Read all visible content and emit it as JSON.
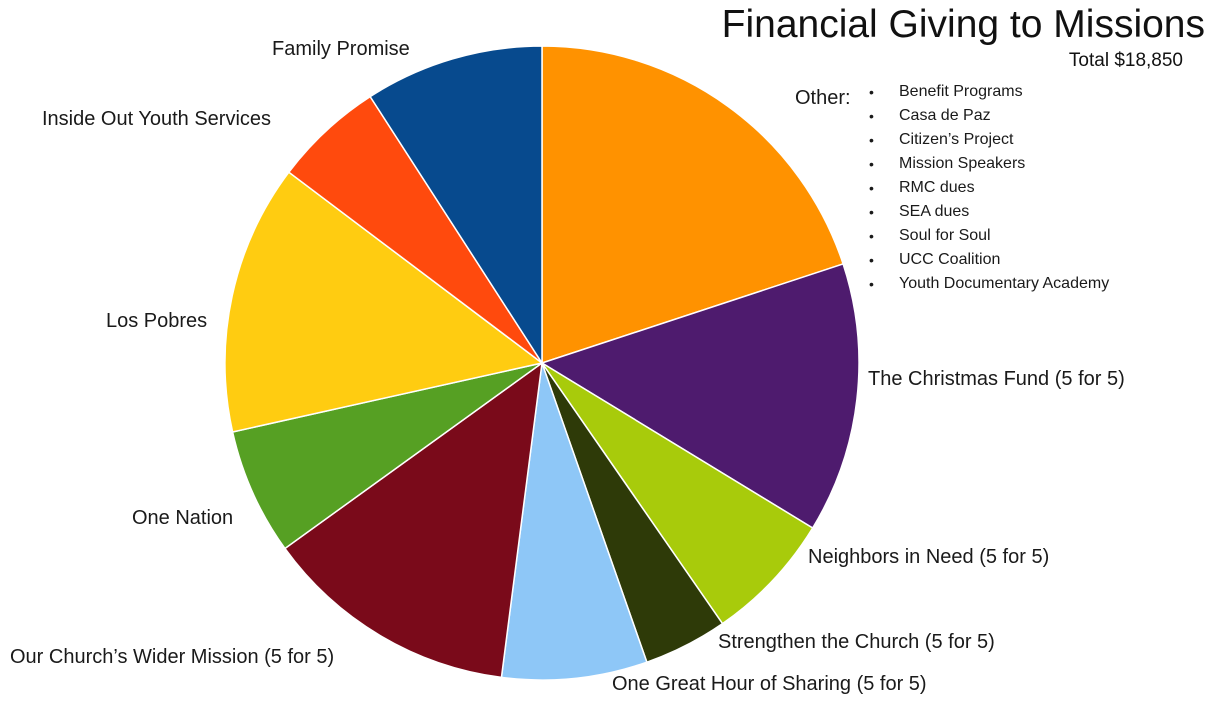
{
  "chart_data": {
    "type": "pie",
    "title": "Financial Giving to Missions",
    "subtitle": "Total $18,850",
    "start_angle_deg": 0,
    "direction": "clockwise",
    "slices": [
      {
        "label": "",
        "value": 21.0,
        "color": "#FF9200"
      },
      {
        "label": "The Christmas Fund (5 for 5)",
        "value": 14.5,
        "color": "#4E1B6E"
      },
      {
        "label": "Neighbors in Need (5 for 5)",
        "value": 7.0,
        "color": "#A8CB0B"
      },
      {
        "label": "Strengthen the Church (5 for 5)",
        "value": 4.5,
        "color": "#2E3A08"
      },
      {
        "label": "One Great Hour of Sharing (5 for 5)",
        "value": 7.8,
        "color": "#8EC7F7"
      },
      {
        "label": "Our Church’s Wider Mission (5 for 5)",
        "value": 13.7,
        "color": "#7A0A1A"
      },
      {
        "label": "One Nation",
        "value": 6.8,
        "color": "#56A023"
      },
      {
        "label": "Los Pobres",
        "value": 14.5,
        "color": "#FFCC11"
      },
      {
        "label": "Inside Out Youth Services",
        "value": 5.9,
        "color": "#FF4A0D"
      },
      {
        "label": "Family Promise",
        "value": 9.6,
        "color": "#074A8E"
      }
    ],
    "other": {
      "label": "Other:",
      "items": [
        "Benefit Programs",
        "Casa de Paz",
        "Citizen’s Project",
        "Mission Speakers",
        "RMC dues",
        "SEA dues",
        "Soul for Soul",
        "UCC Coalition",
        "Youth Documentary Academy"
      ]
    }
  }
}
